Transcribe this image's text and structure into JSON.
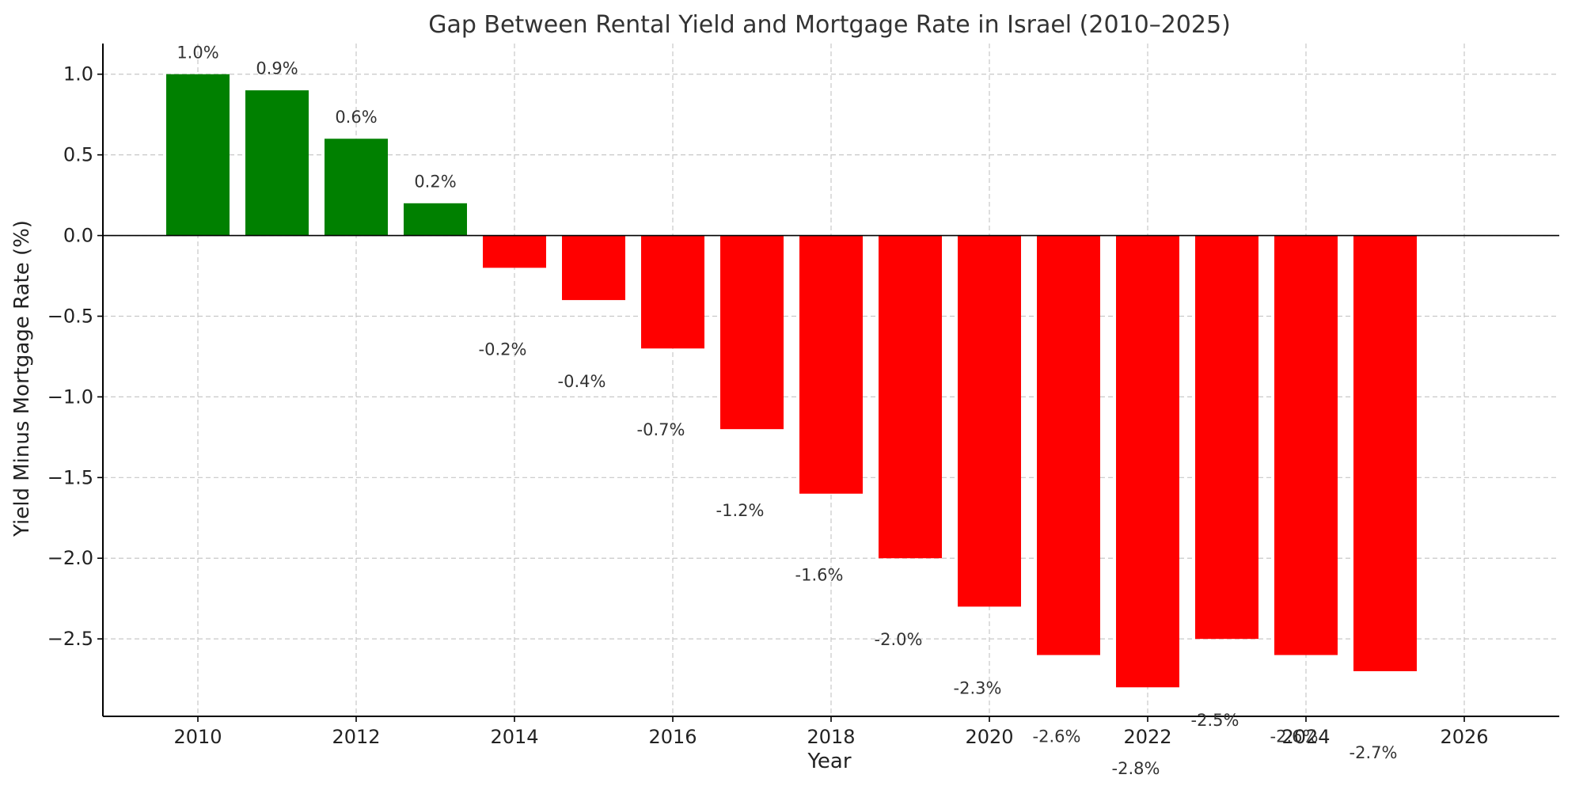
{
  "chart_data": {
    "type": "bar",
    "title": "Gap Between Rental Yield and Mortgage Rate in Israel (2010–2025)",
    "xlabel": "Year",
    "ylabel": "Yield Minus Mortgage Rate (%)",
    "x": [
      2010,
      2011,
      2012,
      2013,
      2014,
      2015,
      2016,
      2017,
      2018,
      2019,
      2020,
      2021,
      2022,
      2023,
      2024,
      2025
    ],
    "values": [
      1.0,
      0.9,
      0.6,
      0.2,
      -0.2,
      -0.4,
      -0.7,
      -1.2,
      -1.6,
      -2.0,
      -2.3,
      -2.6,
      -2.8,
      -2.5,
      -2.6,
      -2.7
    ],
    "data_labels": [
      "1.0%",
      "0.9%",
      "0.6%",
      "0.2%",
      "-0.2%",
      "-0.4%",
      "-0.7%",
      "-1.2%",
      "-1.6%",
      "-2.0%",
      "-2.3%",
      "-2.6%",
      "-2.8%",
      "-2.5%",
      "-2.6%",
      "-2.7%"
    ],
    "xlim": [
      2008.8,
      2027.2
    ],
    "ylim": [
      -2.98,
      1.19
    ],
    "xticks": [
      2010,
      2012,
      2014,
      2016,
      2018,
      2020,
      2022,
      2024,
      2026
    ],
    "xtick_labels": [
      "2010",
      "2012",
      "2014",
      "2016",
      "2018",
      "2020",
      "2022",
      "2024",
      "2026"
    ],
    "yticks": [
      1.0,
      0.5,
      0.0,
      -0.5,
      -1.0,
      -1.5,
      -2.0,
      -2.5
    ],
    "ytick_labels": [
      "1.0",
      "0.5",
      "0.0",
      "−0.5",
      "−1.0",
      "−1.5",
      "−2.0",
      "−2.5"
    ],
    "grid": true,
    "colors": {
      "positive": "#008000",
      "negative": "#ff0000"
    }
  }
}
